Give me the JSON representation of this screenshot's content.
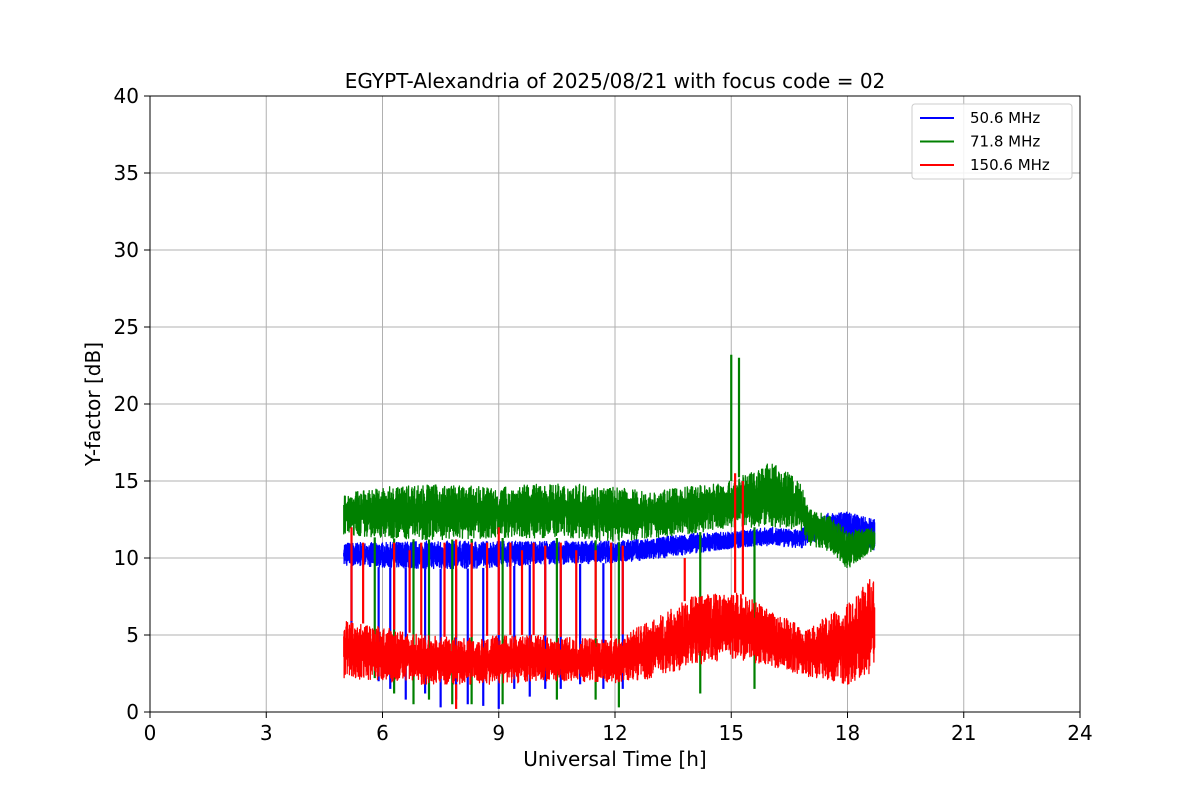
{
  "chart_data": {
    "type": "line",
    "title": "EGYPT-Alexandria of 2025/08/21 with focus code = 02",
    "xlabel": "Universal Time [h]",
    "ylabel": "Y-factor [dB]",
    "xlim": [
      0,
      24
    ],
    "ylim": [
      0,
      40
    ],
    "xticks": [
      "0",
      "3",
      "6",
      "9",
      "12",
      "15",
      "18",
      "21",
      "24"
    ],
    "yticks": [
      "0",
      "5",
      "10",
      "15",
      "20",
      "25",
      "30",
      "35",
      "40"
    ],
    "grid": true,
    "legend_position": "top-right",
    "series": [
      {
        "name": "  50.6 MHz",
        "color": "#0000ff",
        "lower": [
          [
            5.0,
            9.5
          ],
          [
            6.0,
            9.4
          ],
          [
            7.0,
            9.3
          ],
          [
            8.0,
            9.3
          ],
          [
            9.0,
            9.4
          ],
          [
            10.0,
            9.6
          ],
          [
            11.0,
            9.6
          ],
          [
            12.0,
            9.7
          ],
          [
            13.0,
            9.9
          ],
          [
            14.0,
            10.3
          ],
          [
            15.0,
            10.6
          ],
          [
            16.0,
            10.8
          ],
          [
            16.8,
            10.6
          ],
          [
            17.0,
            11.0
          ],
          [
            18.0,
            11.2
          ],
          [
            18.7,
            10.5
          ]
        ],
        "upper": [
          [
            5.0,
            11.0
          ],
          [
            6.0,
            11.0
          ],
          [
            7.0,
            11.1
          ],
          [
            8.0,
            11.1
          ],
          [
            9.0,
            11.1
          ],
          [
            10.0,
            11.1
          ],
          [
            11.0,
            11.1
          ],
          [
            12.0,
            11.1
          ],
          [
            13.0,
            11.3
          ],
          [
            14.0,
            11.6
          ],
          [
            15.0,
            11.7
          ],
          [
            16.0,
            12.0
          ],
          [
            16.8,
            11.8
          ],
          [
            17.0,
            12.8
          ],
          [
            18.0,
            13.0
          ],
          [
            18.7,
            12.5
          ]
        ],
        "spikes": [
          [
            5.2,
            3.0
          ],
          [
            5.9,
            2.0
          ],
          [
            6.2,
            1.5
          ],
          [
            6.6,
            0.8
          ],
          [
            7.1,
            1.2
          ],
          [
            7.5,
            0.3
          ],
          [
            7.9,
            0.8
          ],
          [
            8.2,
            0.5
          ],
          [
            8.6,
            0.4
          ],
          [
            9.0,
            0.2
          ],
          [
            9.4,
            1.5
          ],
          [
            9.8,
            1.0
          ],
          [
            10.2,
            1.5
          ],
          [
            10.6,
            1.5
          ],
          [
            11.1,
            1.8
          ],
          [
            11.7,
            1.5
          ],
          [
            12.2,
            1.5
          ]
        ]
      },
      {
        "name": "  71.8 MHz",
        "color": "#008000",
        "lower": [
          [
            5.0,
            11.5
          ],
          [
            6.0,
            11.3
          ],
          [
            7.0,
            11.2
          ],
          [
            8.0,
            11.2
          ],
          [
            9.0,
            11.3
          ],
          [
            10.0,
            11.3
          ],
          [
            11.0,
            11.3
          ],
          [
            12.0,
            11.0
          ],
          [
            13.0,
            11.3
          ],
          [
            14.0,
            11.6
          ],
          [
            15.0,
            12.0
          ],
          [
            16.0,
            12.0
          ],
          [
            16.8,
            11.8
          ],
          [
            17.0,
            10.8
          ],
          [
            17.5,
            10.4
          ],
          [
            18.0,
            9.3
          ],
          [
            18.7,
            10.6
          ]
        ],
        "upper": [
          [
            5.0,
            14.2
          ],
          [
            6.0,
            14.6
          ],
          [
            7.0,
            14.8
          ],
          [
            8.0,
            14.7
          ],
          [
            9.0,
            14.6
          ],
          [
            10.0,
            14.8
          ],
          [
            11.0,
            14.8
          ],
          [
            12.0,
            14.6
          ],
          [
            13.0,
            14.3
          ],
          [
            14.0,
            14.7
          ],
          [
            15.0,
            15.0
          ],
          [
            15.5,
            15.6
          ],
          [
            16.0,
            16.2
          ],
          [
            16.5,
            15.6
          ],
          [
            16.8,
            14.8
          ],
          [
            17.0,
            13.2
          ],
          [
            17.5,
            12.8
          ],
          [
            18.0,
            11.8
          ],
          [
            18.7,
            12.0
          ]
        ],
        "spikes": [
          [
            15.0,
            23.2
          ],
          [
            15.2,
            23.0
          ],
          [
            5.8,
            2.2
          ],
          [
            6.3,
            1.2
          ],
          [
            6.8,
            0.5
          ],
          [
            7.2,
            0.8
          ],
          [
            7.8,
            0.5
          ],
          [
            8.3,
            0.5
          ],
          [
            9.1,
            0.5
          ],
          [
            10.5,
            0.8
          ],
          [
            11.5,
            0.8
          ],
          [
            12.1,
            0.3
          ],
          [
            14.2,
            1.2
          ],
          [
            15.6,
            1.5
          ]
        ]
      },
      {
        "name": "150.6 MHz",
        "color": "#ff0000",
        "lower": [
          [
            5.0,
            2.2
          ],
          [
            6.0,
            2.0
          ],
          [
            7.0,
            1.8
          ],
          [
            8.0,
            1.8
          ],
          [
            9.0,
            1.8
          ],
          [
            10.0,
            2.0
          ],
          [
            11.0,
            2.0
          ],
          [
            12.0,
            1.9
          ],
          [
            13.0,
            2.2
          ],
          [
            14.0,
            3.0
          ],
          [
            15.0,
            3.5
          ],
          [
            16.0,
            3.0
          ],
          [
            17.0,
            2.3
          ],
          [
            18.0,
            1.8
          ],
          [
            18.7,
            2.5
          ]
        ],
        "upper": [
          [
            5.0,
            6.0
          ],
          [
            6.0,
            5.5
          ],
          [
            7.0,
            5.0
          ],
          [
            8.0,
            4.8
          ],
          [
            9.0,
            5.0
          ],
          [
            10.0,
            5.0
          ],
          [
            11.0,
            4.8
          ],
          [
            12.0,
            4.8
          ],
          [
            13.0,
            6.0
          ],
          [
            14.0,
            7.5
          ],
          [
            15.0,
            7.8
          ],
          [
            15.5,
            7.5
          ],
          [
            16.0,
            6.5
          ],
          [
            17.0,
            5.5
          ],
          [
            18.0,
            7.0
          ],
          [
            18.7,
            9.0
          ]
        ],
        "spikes": [
          [
            6.3,
            11.0
          ],
          [
            6.7,
            10.5
          ],
          [
            7.0,
            11.0
          ],
          [
            7.6,
            11.0
          ],
          [
            7.9,
            11.2
          ],
          [
            8.3,
            11.0
          ],
          [
            8.7,
            11.0
          ],
          [
            9.0,
            12.0
          ],
          [
            9.3,
            11.0
          ],
          [
            9.6,
            10.5
          ],
          [
            9.9,
            11.0
          ],
          [
            10.2,
            10.8
          ],
          [
            10.6,
            11.0
          ],
          [
            11.0,
            10.5
          ],
          [
            11.5,
            10.5
          ],
          [
            11.9,
            11.0
          ],
          [
            12.2,
            10.8
          ],
          [
            13.8,
            10.0
          ],
          [
            15.1,
            15.5
          ],
          [
            15.3,
            15.0
          ],
          [
            5.2,
            12.0
          ],
          [
            5.5,
            11.0
          ],
          [
            7.9,
            0.2
          ]
        ]
      }
    ]
  }
}
